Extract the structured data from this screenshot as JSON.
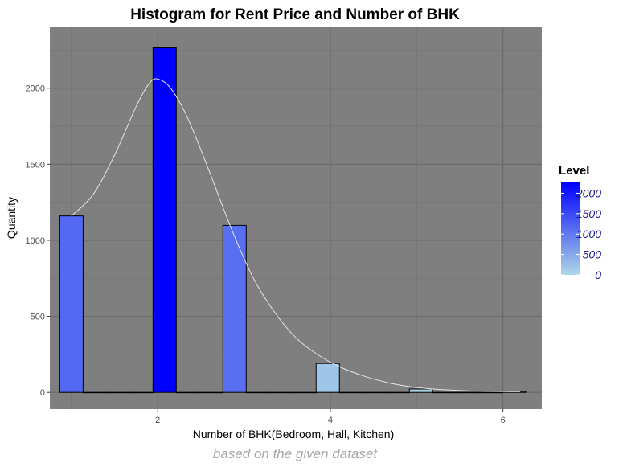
{
  "chart_data": {
    "type": "bar",
    "title": "Histogram for Rent Price and Number of BHK",
    "xlabel": "Number of BHK(Bedroom, Hall, Kitchen)",
    "ylabel": "Quantity",
    "caption": "based on the given dataset",
    "xlim": [
      0.75,
      6.45
    ],
    "ylim": [
      -110,
      2400
    ],
    "x_ticks": [
      2,
      4,
      6
    ],
    "y_ticks": [
      0,
      500,
      1000,
      1500,
      2000
    ],
    "grid": true,
    "background": "#7f7f7f",
    "bin_width": 0.27,
    "bars": [
      {
        "x": 1.0,
        "value": 1160
      },
      {
        "x": 1.27,
        "value": 0
      },
      {
        "x": 1.54,
        "value": 0
      },
      {
        "x": 1.81,
        "value": 0
      },
      {
        "x": 2.08,
        "value": 2265
      },
      {
        "x": 2.35,
        "value": 0
      },
      {
        "x": 2.62,
        "value": 0
      },
      {
        "x": 2.89,
        "value": 1098
      },
      {
        "x": 3.16,
        "value": 0
      },
      {
        "x": 3.43,
        "value": 0
      },
      {
        "x": 3.7,
        "value": 0
      },
      {
        "x": 3.97,
        "value": 190
      },
      {
        "x": 4.24,
        "value": 0
      },
      {
        "x": 4.51,
        "value": 0
      },
      {
        "x": 4.78,
        "value": 0
      },
      {
        "x": 5.05,
        "value": 22
      },
      {
        "x": 5.32,
        "value": 0
      },
      {
        "x": 5.59,
        "value": 0
      },
      {
        "x": 5.86,
        "value": 0
      },
      {
        "x": 6.13,
        "value": 6
      }
    ],
    "density_curve": {
      "x": [
        1.0,
        1.25,
        1.5,
        1.75,
        1.9,
        2.0,
        2.15,
        2.35,
        2.6,
        2.85,
        3.1,
        3.35,
        3.6,
        3.85,
        4.1,
        4.4,
        4.7,
        5.0,
        5.3,
        5.6,
        5.9,
        6.2
      ],
      "y": [
        1160,
        1300,
        1560,
        1880,
        2030,
        2060,
        2000,
        1800,
        1450,
        1080,
        760,
        530,
        360,
        250,
        170,
        105,
        60,
        32,
        18,
        10,
        6,
        5
      ],
      "color": "#e6e6e6"
    },
    "legend": {
      "title": "Level",
      "placement": "right",
      "min": 0,
      "max": 2265,
      "labels": [
        2000,
        1500,
        1000,
        500,
        0
      ],
      "low_color": "#add8e6",
      "high_color": "#0000ff"
    }
  }
}
